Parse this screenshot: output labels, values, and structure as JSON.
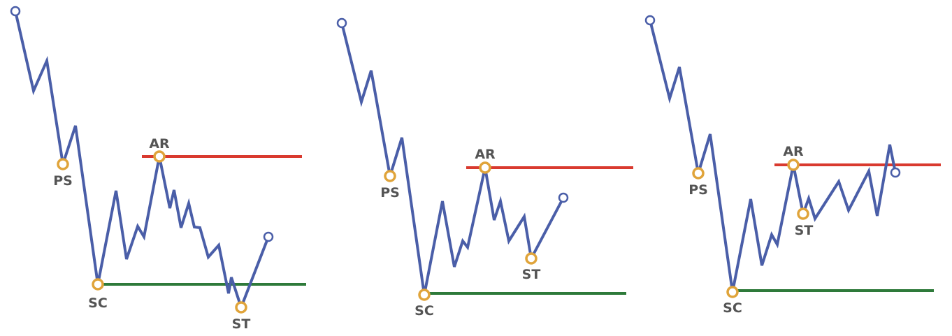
{
  "colors": {
    "price_line": "#4a5ea8",
    "resistance": "#d93a2f",
    "support": "#2e7a3a",
    "event_marker": "#e0a43a",
    "endpoint_marker": "#4a5ea8",
    "label": "#545454",
    "background": "#ffffff"
  },
  "panels": [
    {
      "id": "panel-1",
      "events": [
        {
          "key": "ps",
          "label": "PS"
        },
        {
          "key": "sc",
          "label": "SC"
        },
        {
          "key": "ar",
          "label": "AR"
        },
        {
          "key": "st",
          "label": "ST"
        }
      ]
    },
    {
      "id": "panel-2",
      "events": [
        {
          "key": "ps",
          "label": "PS"
        },
        {
          "key": "sc",
          "label": "SC"
        },
        {
          "key": "ar",
          "label": "AR"
        },
        {
          "key": "st",
          "label": "ST"
        }
      ]
    },
    {
      "id": "panel-3",
      "events": [
        {
          "key": "ps",
          "label": "PS"
        },
        {
          "key": "sc",
          "label": "SC"
        },
        {
          "key": "ar",
          "label": "AR"
        },
        {
          "key": "st",
          "label": "ST"
        }
      ]
    }
  ]
}
